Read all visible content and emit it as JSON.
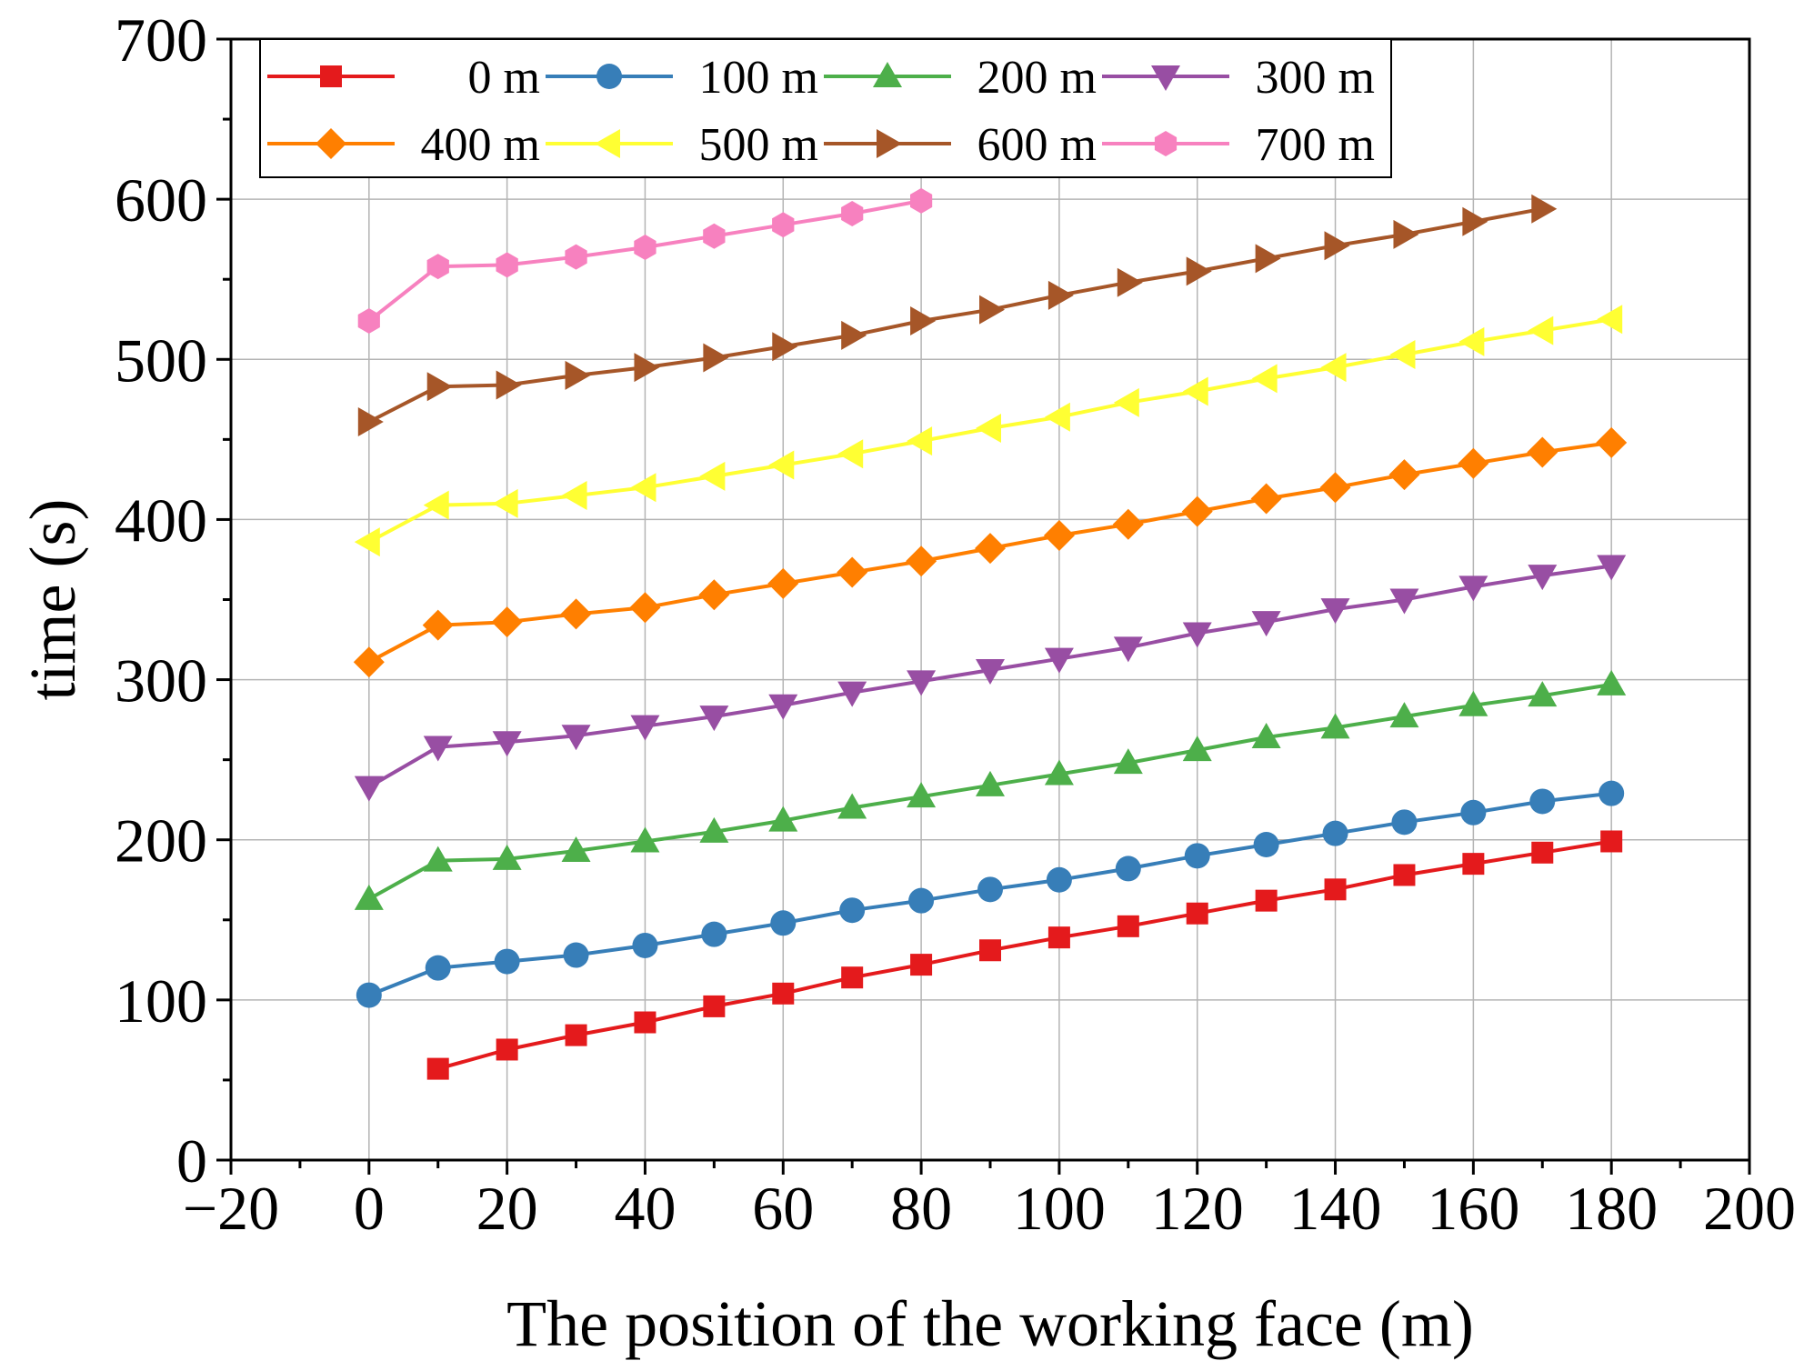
{
  "chart_data": {
    "type": "line",
    "xlabel": "The position of the working face (m)",
    "ylabel": "time (s)",
    "xlim": [
      -20,
      200
    ],
    "ylim": [
      0,
      700
    ],
    "xticks": [
      -20,
      0,
      20,
      40,
      60,
      80,
      100,
      120,
      140,
      160,
      180,
      200
    ],
    "xtick_labels": [
      "−20",
      "0",
      "20",
      "40",
      "60",
      "80",
      "100",
      "120",
      "140",
      "160",
      "180",
      "200"
    ],
    "yticks": [
      0,
      100,
      200,
      300,
      400,
      500,
      600,
      700
    ],
    "ytick_labels": [
      "0",
      "100",
      "200",
      "300",
      "400",
      "500",
      "600",
      "700"
    ],
    "grid": true,
    "legend_position": "top-left",
    "series": [
      {
        "name": "0 m",
        "color": "#e41a1c",
        "marker": "square",
        "x": [
          10,
          20,
          30,
          40,
          50,
          60,
          70,
          80,
          90,
          100,
          110,
          120,
          130,
          140,
          150,
          160,
          170,
          180
        ],
        "y": [
          57,
          69,
          78,
          86,
          96,
          104,
          114,
          122,
          131,
          139,
          146,
          154,
          162,
          169,
          178,
          185,
          192,
          199
        ]
      },
      {
        "name": "100 m",
        "color": "#377eb8",
        "marker": "circle",
        "x": [
          0,
          10,
          20,
          30,
          40,
          50,
          60,
          70,
          80,
          90,
          100,
          110,
          120,
          130,
          140,
          150,
          160,
          170,
          180
        ],
        "y": [
          103,
          120,
          124,
          128,
          134,
          141,
          148,
          156,
          162,
          169,
          175,
          182,
          190,
          197,
          204,
          211,
          217,
          224,
          229
        ]
      },
      {
        "name": "200 m",
        "color": "#4daf4a",
        "marker": "triangle-up",
        "x": [
          0,
          10,
          20,
          30,
          40,
          50,
          60,
          70,
          80,
          90,
          100,
          110,
          120,
          130,
          140,
          150,
          160,
          170,
          180
        ],
        "y": [
          163,
          187,
          188,
          193,
          199,
          205,
          212,
          220,
          227,
          234,
          241,
          248,
          256,
          264,
          270,
          277,
          284,
          290,
          297
        ]
      },
      {
        "name": "300 m",
        "color": "#984ea3",
        "marker": "triangle-down",
        "x": [
          0,
          10,
          20,
          30,
          40,
          50,
          60,
          70,
          80,
          90,
          100,
          110,
          120,
          130,
          140,
          150,
          160,
          170,
          180
        ],
        "y": [
          233,
          258,
          261,
          265,
          271,
          277,
          284,
          292,
          299,
          306,
          313,
          320,
          329,
          336,
          344,
          350,
          358,
          365,
          371
        ]
      },
      {
        "name": "400 m",
        "color": "#ff7f00",
        "marker": "diamond",
        "x": [
          0,
          10,
          20,
          30,
          40,
          50,
          60,
          70,
          80,
          90,
          100,
          110,
          120,
          130,
          140,
          150,
          160,
          170,
          180
        ],
        "y": [
          311,
          334,
          336,
          341,
          345,
          353,
          360,
          367,
          374,
          382,
          390,
          397,
          405,
          413,
          420,
          428,
          435,
          442,
          448
        ]
      },
      {
        "name": "500 m",
        "color": "#ffff33",
        "marker": "triangle-left",
        "x": [
          0,
          10,
          20,
          30,
          40,
          50,
          60,
          70,
          80,
          90,
          100,
          110,
          120,
          130,
          140,
          150,
          160,
          170,
          180
        ],
        "y": [
          386,
          409,
          410,
          415,
          420,
          427,
          434,
          441,
          449,
          457,
          464,
          473,
          480,
          488,
          495,
          503,
          511,
          518,
          525
        ]
      },
      {
        "name": "600 m",
        "color": "#a65628",
        "marker": "triangle-right",
        "x": [
          0,
          10,
          20,
          30,
          40,
          50,
          60,
          70,
          80,
          90,
          100,
          110,
          120,
          130,
          140,
          150,
          160,
          170
        ],
        "y": [
          461,
          483,
          484,
          490,
          495,
          501,
          508,
          515,
          524,
          531,
          540,
          548,
          555,
          563,
          571,
          578,
          586,
          594
        ]
      },
      {
        "name": "700 m",
        "color": "#f781bf",
        "marker": "hexagon",
        "x": [
          0,
          10,
          20,
          30,
          40,
          50,
          60,
          70,
          80
        ],
        "y": [
          524,
          558,
          559,
          564,
          570,
          577,
          584,
          591,
          599
        ]
      }
    ]
  }
}
